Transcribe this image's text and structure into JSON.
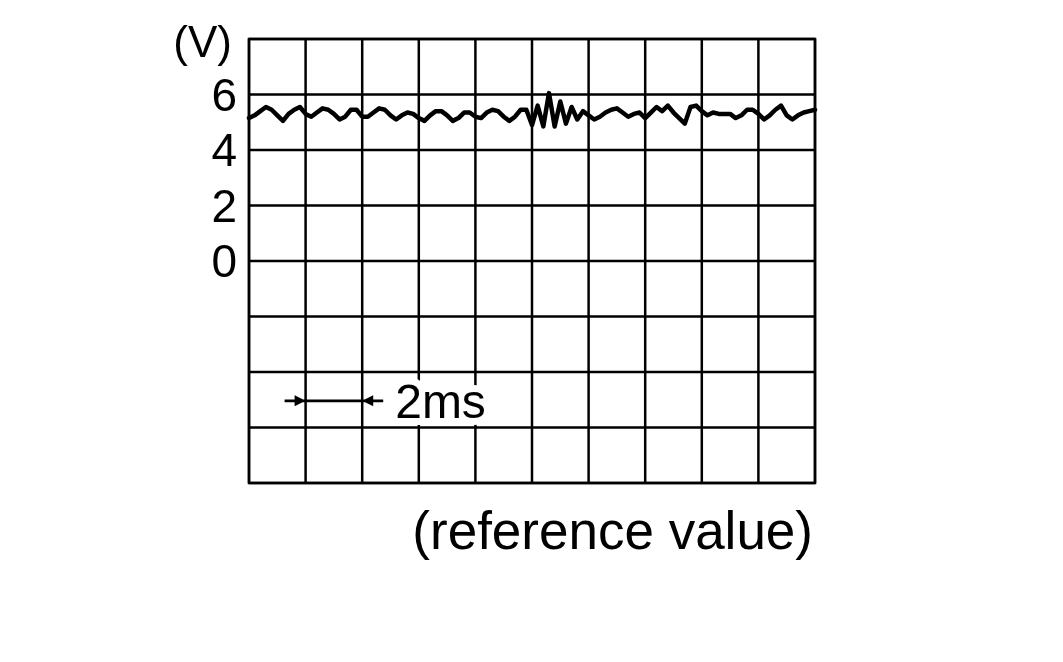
{
  "chart_data": {
    "type": "line",
    "ylabel": "(V)",
    "annotations": [
      "2ms",
      "(reference value)"
    ],
    "categories": [
      null,
      null,
      null,
      null,
      null,
      null,
      null,
      null,
      null,
      null,
      null,
      null,
      null,
      null,
      null,
      null,
      null,
      null,
      null,
      null,
      null,
      null,
      null,
      null,
      null,
      null,
      null,
      null,
      null,
      null,
      null,
      null,
      null,
      null,
      null,
      null,
      null,
      null,
      null,
      null,
      null,
      null,
      null,
      null,
      null,
      null,
      null,
      null,
      null,
      null,
      null,
      null,
      null,
      null,
      null,
      null,
      null,
      null,
      null,
      null,
      null,
      null,
      null,
      null,
      null,
      null,
      null,
      null,
      null,
      null,
      null,
      null,
      null,
      null,
      null,
      null,
      null,
      null,
      null,
      null,
      null,
      null,
      null,
      null,
      null,
      null,
      null,
      null,
      null,
      null,
      null,
      null,
      null,
      null,
      null,
      null,
      null,
      null,
      null,
      null,
      null
    ],
    "values": [
      5.15,
      5.25,
      5.4,
      5.55,
      5.45,
      5.25,
      5.05,
      5.3,
      5.45,
      5.55,
      5.3,
      5.2,
      5.35,
      5.5,
      5.45,
      5.3,
      5.1,
      5.2,
      5.45,
      5.45,
      5.2,
      5.2,
      5.35,
      5.5,
      5.45,
      5.25,
      5.1,
      5.25,
      5.35,
      5.3,
      5.15,
      5.05,
      5.25,
      5.4,
      5.4,
      5.25,
      5.05,
      5.15,
      5.35,
      5.35,
      5.2,
      5.15,
      5.35,
      5.45,
      5.4,
      5.2,
      5.05,
      5.2,
      5.45,
      5.45,
      4.9,
      5.6,
      4.85,
      6.05,
      4.85,
      5.75,
      4.95,
      5.55,
      5.1,
      5.4,
      5.25,
      5.1,
      5.2,
      5.35,
      5.45,
      5.5,
      5.35,
      5.2,
      5.3,
      5.35,
      5.15,
      5.35,
      5.55,
      5.4,
      5.6,
      5.35,
      5.15,
      4.95,
      5.55,
      5.6,
      5.4,
      5.25,
      5.35,
      5.3,
      5.3,
      5.3,
      5.15,
      5.25,
      5.45,
      5.45,
      5.3,
      5.1,
      5.25,
      5.45,
      5.6,
      5.25,
      5.1,
      5.25,
      5.35,
      5.4,
      5.45
    ],
    "color": "#000000",
    "ylim": [
      -8,
      8
    ],
    "yticks": [
      {
        "value": -8,
        "label": null
      },
      {
        "value": -6,
        "label": null
      },
      {
        "value": -4,
        "label": null
      },
      {
        "value": -2,
        "label": null
      },
      0,
      2,
      4,
      6,
      {
        "value": 8,
        "label": null
      }
    ],
    "grid": true,
    "tick_labels": "y"
  }
}
